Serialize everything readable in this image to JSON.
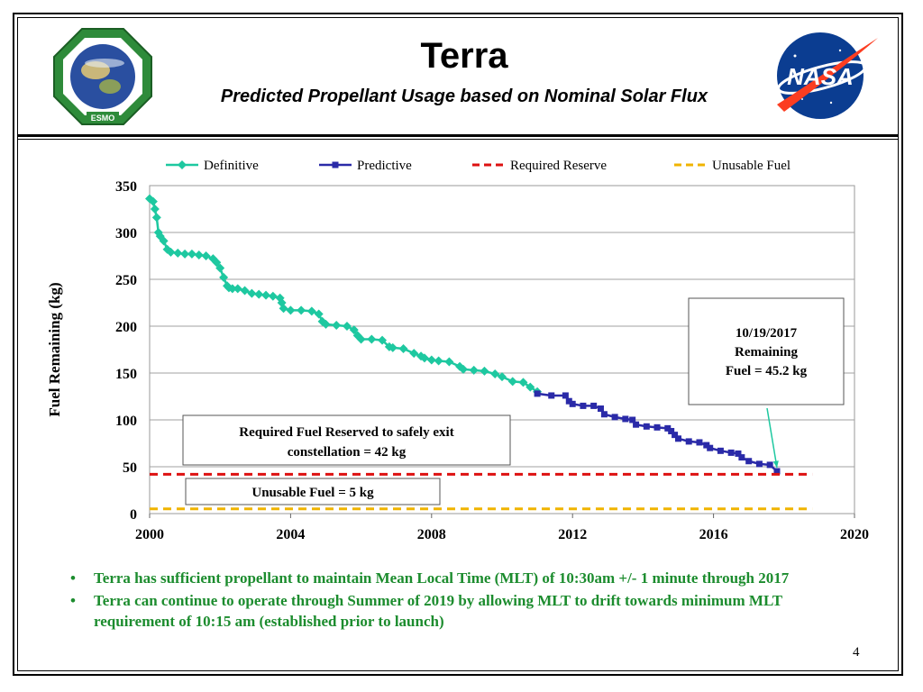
{
  "header": {
    "title": "Terra",
    "subtitle": "Predicted Propellant Usage based on Nominal Solar Flux"
  },
  "logos": {
    "esmo_name": "ESMO",
    "nasa_name": "NASA"
  },
  "chart_data": {
    "type": "line",
    "ylabel": "Fuel Remaining (kg)",
    "xlim": [
      2000,
      2020
    ],
    "ylim": [
      0,
      350
    ],
    "x_ticks": [
      "2000",
      "2004",
      "2008",
      "2012",
      "2016",
      "2020"
    ],
    "y_ticks": [
      "0",
      "50",
      "100",
      "150",
      "200",
      "250",
      "300",
      "350"
    ],
    "grid": "horizontal",
    "legend_placement": "top",
    "series": [
      {
        "name": "Definitive",
        "color": "#1ec8a0",
        "marker": "diamond",
        "x": [
          2000.0,
          2000.1,
          2000.15,
          2000.2,
          2000.25,
          2000.3,
          2000.4,
          2000.5,
          2000.6,
          2000.8,
          2001.0,
          2001.2,
          2001.4,
          2001.6,
          2001.8,
          2001.9,
          2002.0,
          2002.1,
          2002.2,
          2002.25,
          2002.35,
          2002.5,
          2002.7,
          2002.9,
          2003.1,
          2003.3,
          2003.5,
          2003.7,
          2003.75,
          2003.8,
          2004.0,
          2004.3,
          2004.6,
          2004.8,
          2004.9,
          2005.0,
          2005.3,
          2005.6,
          2005.8,
          2005.9,
          2006.0,
          2006.3,
          2006.6,
          2006.8,
          2006.9,
          2007.2,
          2007.5,
          2007.7,
          2007.8,
          2008.0,
          2008.2,
          2008.5,
          2008.8,
          2008.9,
          2009.2,
          2009.5,
          2009.8,
          2010.0,
          2010.3,
          2010.6,
          2010.8,
          2011.0
        ],
        "y": [
          336,
          333,
          325,
          316,
          300,
          296,
          291,
          282,
          279,
          278,
          277,
          277,
          276,
          275,
          272,
          268,
          262,
          252,
          243,
          241,
          240,
          240,
          238,
          235,
          234,
          233,
          232,
          230,
          225,
          219,
          217,
          217,
          216,
          213,
          205,
          202,
          201,
          200,
          196,
          190,
          186,
          186,
          185,
          178,
          177,
          176,
          171,
          168,
          166,
          164,
          163,
          162,
          157,
          154,
          153,
          152,
          149,
          146,
          141,
          140,
          135,
          130
        ]
      },
      {
        "name": "Predictive",
        "color": "#2a2aa8",
        "marker": "square",
        "x": [
          2011.0,
          2011.4,
          2011.8,
          2011.9,
          2012.0,
          2012.3,
          2012.6,
          2012.8,
          2012.9,
          2013.2,
          2013.5,
          2013.7,
          2013.8,
          2014.1,
          2014.4,
          2014.7,
          2014.8,
          2014.9,
          2015.0,
          2015.3,
          2015.6,
          2015.8,
          2015.9,
          2016.2,
          2016.5,
          2016.7,
          2016.8,
          2017.0,
          2017.3,
          2017.6,
          2017.8
        ],
        "y": [
          128,
          126,
          126,
          120,
          117,
          115,
          115,
          112,
          106,
          103,
          101,
          100,
          95,
          93,
          92,
          91,
          88,
          84,
          80,
          77,
          76,
          73,
          70,
          67,
          65,
          64,
          60,
          56,
          53,
          52,
          45.2
        ]
      },
      {
        "name": "Required Reserve",
        "color": "#dd1111",
        "style": "dashed",
        "x": [
          2000,
          2018.8
        ],
        "y": [
          42,
          42
        ]
      },
      {
        "name": "Unusable Fuel",
        "color": "#f0b400",
        "style": "dashed",
        "x": [
          2000,
          2018.8
        ],
        "y": [
          5,
          5
        ]
      }
    ],
    "annotations": [
      {
        "id": "remaining",
        "lines": [
          "10/19/2017",
          "Remaining",
          "Fuel = 45.2 kg"
        ],
        "arrow_to": {
          "x": 2017.8,
          "y": 45.2
        }
      },
      {
        "id": "reserve",
        "lines": [
          "Required Fuel Reserved to safely exit",
          "constellation = 42 kg"
        ]
      },
      {
        "id": "unusable",
        "lines": [
          "Unusable Fuel = 5 kg"
        ]
      }
    ]
  },
  "bullets": [
    "Terra has sufficient propellant to maintain Mean Local Time (MLT) of 10:30am +/- 1 minute through 2017",
    "Terra can continue to operate through Summer of 2019 by allowing MLT to drift towards minimum MLT requirement of 10:15 am (established prior to launch)"
  ],
  "page_number": "4"
}
